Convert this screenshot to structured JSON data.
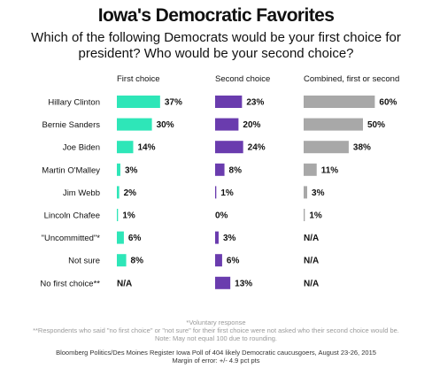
{
  "title": "Iowa's Democratic Favorites",
  "subtitle": "Which of the following Democrats would be your first choice for president? Who would be your second choice?",
  "chart_data": {
    "type": "bar",
    "categories": [
      "Hillary Clinton",
      "Bernie Sanders",
      "Joe Biden",
      "Martin O'Malley",
      "Jim Webb",
      "Lincoln Chafee",
      "\"Uncommitted\"*",
      "Not sure",
      "No first choice**"
    ],
    "series": [
      {
        "name": "First choice",
        "color": "#2ee6b8",
        "values": [
          37,
          30,
          14,
          3,
          2,
          1,
          6,
          8,
          null
        ],
        "labels": [
          "37%",
          "30%",
          "14%",
          "3%",
          "2%",
          "1%",
          "6%",
          "8%",
          "N/A"
        ]
      },
      {
        "name": "Second choice",
        "color": "#6a3cae",
        "values": [
          23,
          20,
          24,
          8,
          1,
          0,
          3,
          6,
          13
        ],
        "labels": [
          "23%",
          "20%",
          "24%",
          "8%",
          "1%",
          "0%",
          "3%",
          "6%",
          "13%"
        ]
      },
      {
        "name": "Combined, first or second",
        "color": "#a8a8a8",
        "values": [
          60,
          50,
          38,
          11,
          3,
          1,
          null,
          null,
          null
        ],
        "labels": [
          "60%",
          "50%",
          "38%",
          "11%",
          "3%",
          "1%",
          "N/A",
          "N/A",
          "N/A"
        ]
      }
    ]
  },
  "footnotes": {
    "voluntary": "*Voluntary response",
    "no_first_choice": "**Respondents who said \"no first choice\" or \"not sure\" for their first choice were not asked who their second choice would be.",
    "rounding": "Note: May not equal 100 due to rounding."
  },
  "source": "Bloomberg Politics/Des Moines Register Iowa Poll of 404 likely Democratic caucusgoers, August 23-26, 2015",
  "margin": "Margin of error: +/- 4.9 pct pts"
}
